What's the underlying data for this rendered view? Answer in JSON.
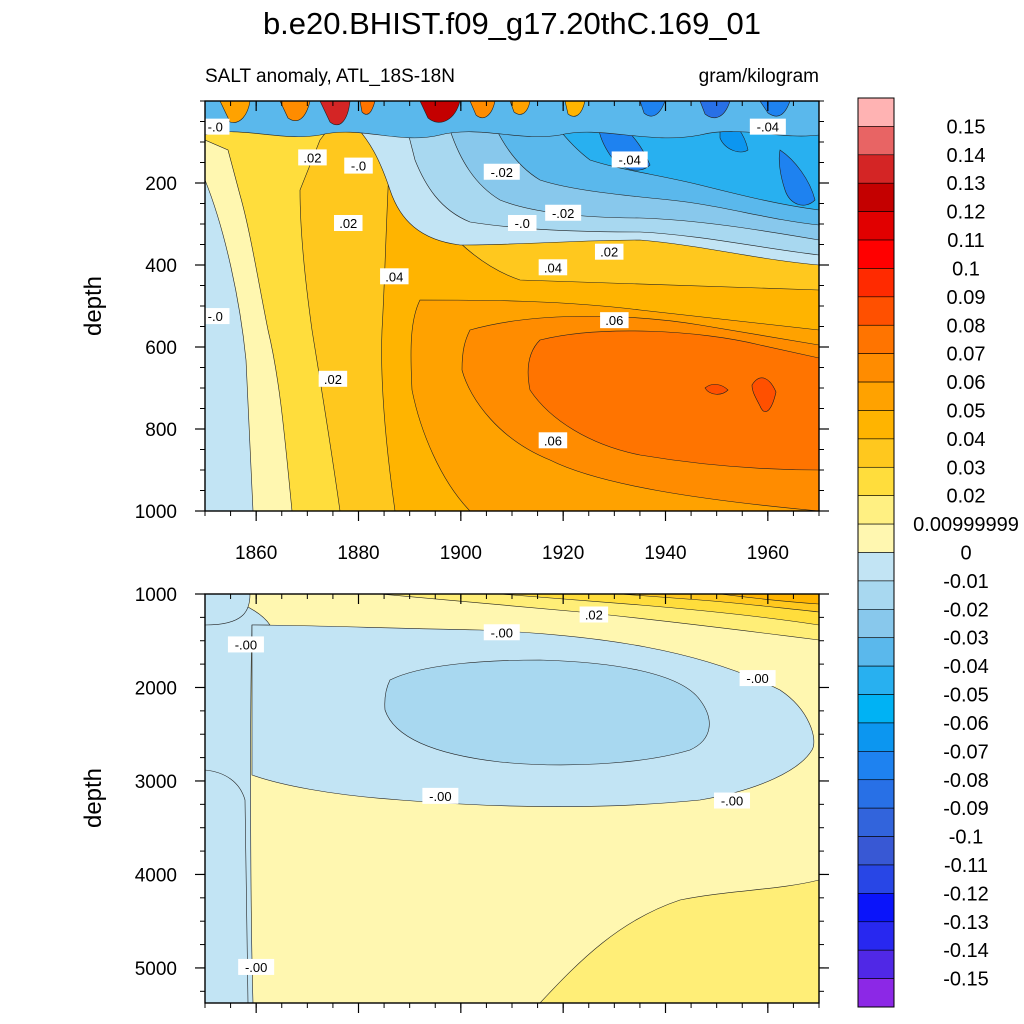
{
  "chart_data": {
    "type": "heatmap",
    "title": "b.e20.BHIST.f09_g17.20thC.169_01",
    "left_string": "SALT anomaly, ATL_18S-18N",
    "right_string": "gram/kilogram",
    "colorbar": {
      "labels": [
        "0.15",
        "0.14",
        "0.13",
        "0.12",
        "0.11",
        "0.1",
        "0.09",
        "0.08",
        "0.07",
        "0.06",
        "0.05",
        "0.04",
        "0.03",
        "0.02",
        "0.00999999",
        "0",
        "-0.01",
        "-0.02",
        "-0.03",
        "-0.04",
        "-0.05",
        "-0.06",
        "-0.07",
        "-0.08",
        "-0.09",
        "-0.1",
        "-0.11",
        "-0.12",
        "-0.13",
        "-0.14",
        "-0.15"
      ],
      "colors": [
        "#ffb3b3",
        "#e86464",
        "#d42525",
        "#c40000",
        "#e10000",
        "#ff0000",
        "#ff2a00",
        "#ff5000",
        "#ff7400",
        "#ff8c00",
        "#ffa200",
        "#ffb400",
        "#ffc81e",
        "#ffdd3c",
        "#fff082",
        "#fff7b0",
        "#c2e4f4",
        "#a8d8f0",
        "#88c8ec",
        "#5ab8ec",
        "#28b0f0",
        "#00b2f4",
        "#0c96f0",
        "#1e82f0",
        "#2870e6",
        "#3264dc",
        "#3858d4",
        "#2846e6",
        "#0a14fa",
        "#2828f0",
        "#5028e6",
        "#8c28e6"
      ]
    },
    "panels": [
      {
        "ylabel": "depth",
        "xticks": [
          "1860",
          "1880",
          "1900",
          "1920",
          "1940",
          "1960"
        ],
        "yticks": [
          "200",
          "400",
          "600",
          "800",
          "1000"
        ],
        "xlim": [
          1850,
          1970
        ],
        "ylim": [
          0,
          1000
        ],
        "contour_labels": [
          {
            "text": "-.0",
            "x": 1852,
            "y": 65
          },
          {
            "text": ".02",
            "x": 1871,
            "y": 140
          },
          {
            "text": "-.0",
            "x": 1880,
            "y": 160
          },
          {
            "text": "-.02",
            "x": 1908,
            "y": 175
          },
          {
            "text": "-.04",
            "x": 1933,
            "y": 145
          },
          {
            "text": "-.04",
            "x": 1960,
            "y": 65
          },
          {
            "text": "-.02",
            "x": 1920,
            "y": 275
          },
          {
            "text": "-.0",
            "x": 1912,
            "y": 300
          },
          {
            "text": ".02",
            "x": 1878,
            "y": 300
          },
          {
            "text": ".02",
            "x": 1929,
            "y": 370
          },
          {
            "text": ".04",
            "x": 1918,
            "y": 408
          },
          {
            "text": ".04",
            "x": 1887,
            "y": 430
          },
          {
            "text": ".06",
            "x": 1930,
            "y": 537
          },
          {
            "text": "-.0",
            "x": 1852,
            "y": 527
          },
          {
            "text": ".02",
            "x": 1875,
            "y": 680
          },
          {
            "text": ".06",
            "x": 1918,
            "y": 830
          }
        ]
      },
      {
        "ylabel": "depth",
        "xticks": [],
        "yticks": [
          "1000",
          "2000",
          "3000",
          "4000",
          "5000"
        ],
        "xlim": [
          1850,
          1970
        ],
        "ylim": [
          1000,
          5375
        ],
        "contour_labels": [
          {
            "text": ".02",
            "x": 1926,
            "y": 1230
          },
          {
            "text": "-.00",
            "x": 1908,
            "y": 1420
          },
          {
            "text": "-.00",
            "x": 1858,
            "y": 1550
          },
          {
            "text": "-.00",
            "x": 1958,
            "y": 1910
          },
          {
            "text": "-.00",
            "x": 1896,
            "y": 3170
          },
          {
            "text": "-.00",
            "x": 1953,
            "y": 3220
          },
          {
            "text": "-.00",
            "x": 1860,
            "y": 5000
          }
        ]
      }
    ]
  }
}
